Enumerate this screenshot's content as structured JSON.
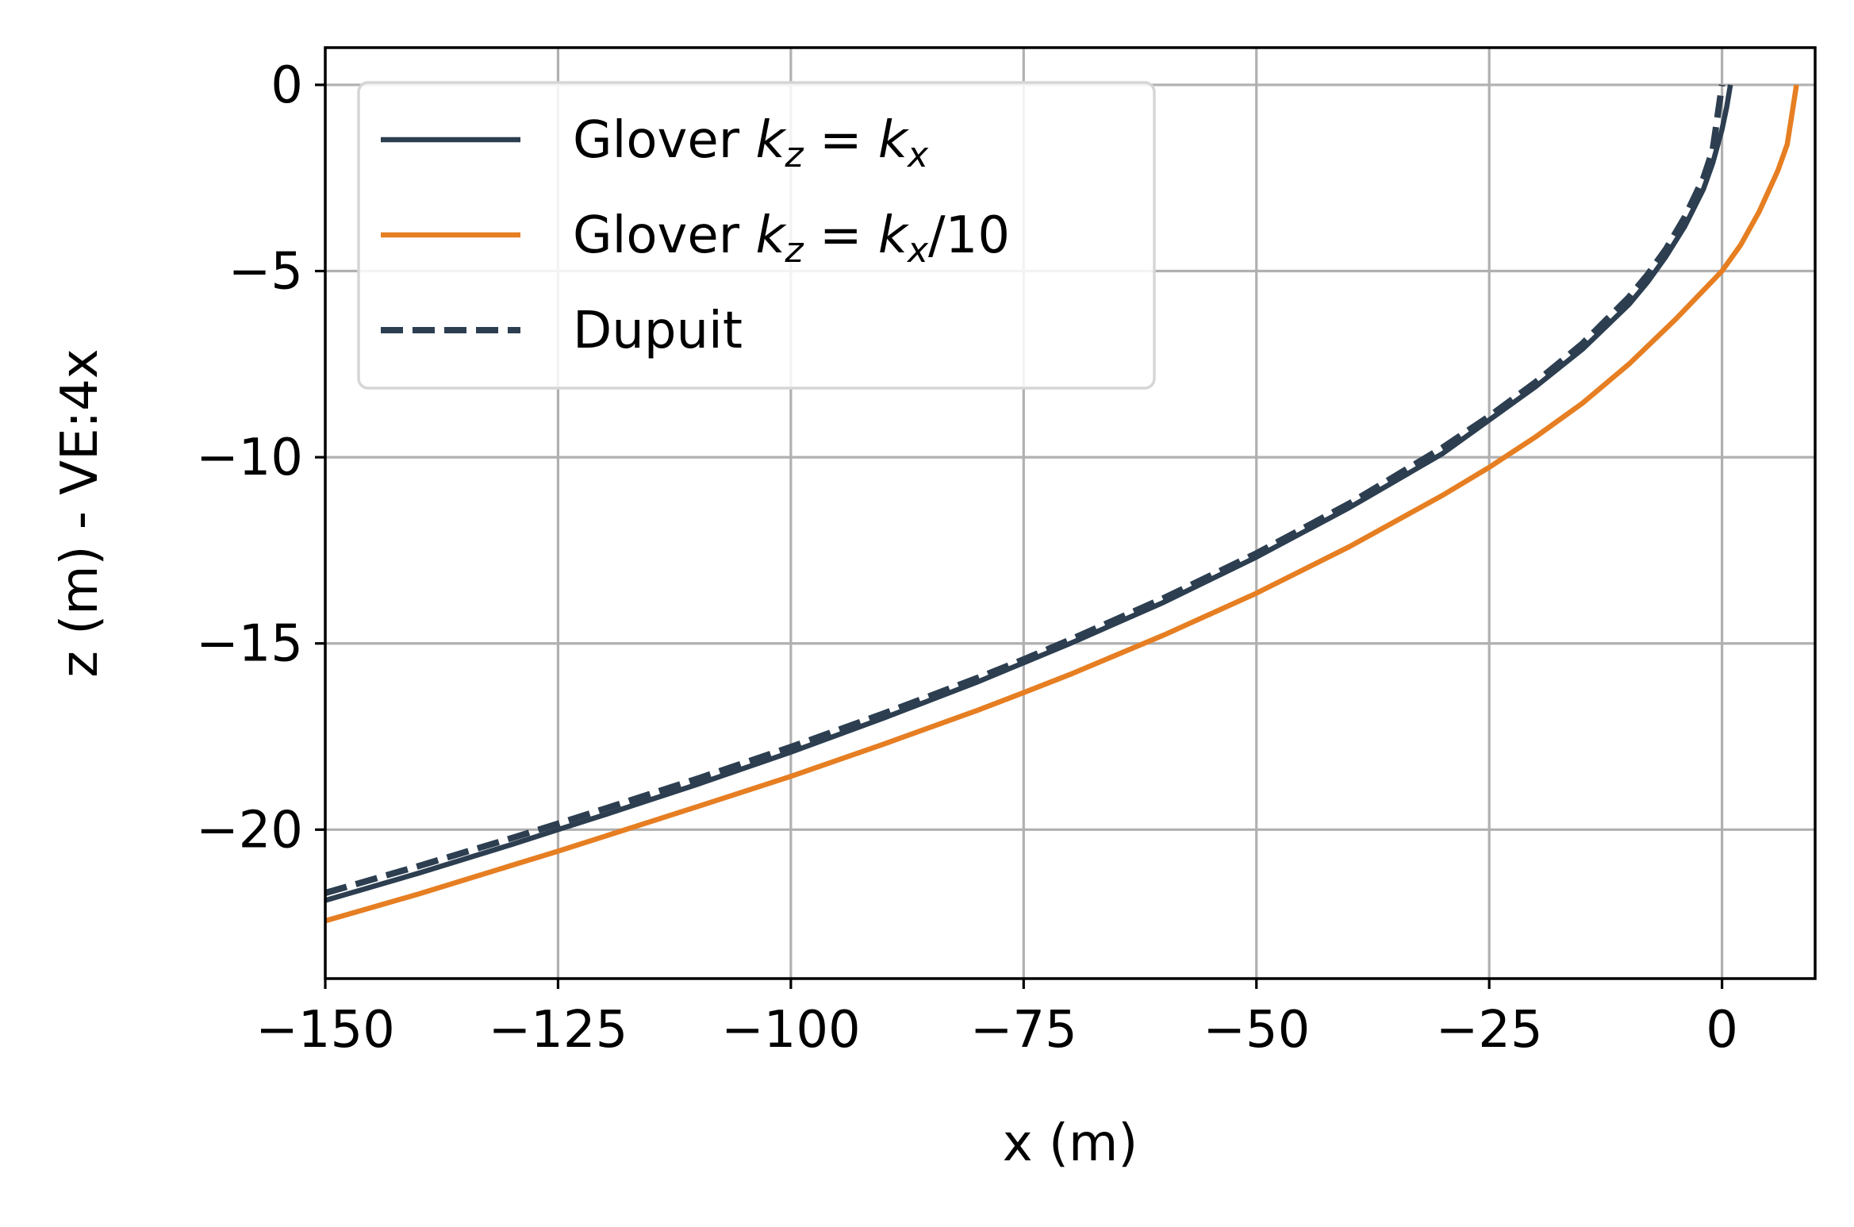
{
  "chart_data": {
    "type": "line",
    "xlabel": "x (m)",
    "ylabel": "z (m) - VE:4x",
    "xlim": [
      -150,
      10
    ],
    "ylim": [
      -24,
      1
    ],
    "grid": true,
    "legend_position": "upper-left",
    "x_ticks": [
      {
        "value": -150,
        "label": "−150"
      },
      {
        "value": -125,
        "label": "−125"
      },
      {
        "value": -100,
        "label": "−100"
      },
      {
        "value": -75,
        "label": "−75"
      },
      {
        "value": -50,
        "label": "−50"
      },
      {
        "value": -25,
        "label": "−25"
      },
      {
        "value": 0,
        "label": "0"
      }
    ],
    "y_ticks": [
      {
        "value": 0,
        "label": "0"
      },
      {
        "value": -5,
        "label": "−5"
      },
      {
        "value": -10,
        "label": "−10"
      },
      {
        "value": -15,
        "label": "−15"
      },
      {
        "value": -20,
        "label": "−20"
      }
    ],
    "series": [
      {
        "name": "Glover kz = kx",
        "legend": {
          "prefix": "Glover ",
          "k1": "k",
          "s1": "z",
          "eq": " = ",
          "k2": "k",
          "s2": "x",
          "suffix": ""
        },
        "color": "#2c3e50",
        "style": "solid",
        "points": [
          [
            -150,
            -21.9
          ],
          [
            -140,
            -21.17
          ],
          [
            -130,
            -20.4
          ],
          [
            -125,
            -20.0
          ],
          [
            -120,
            -19.6
          ],
          [
            -110,
            -18.78
          ],
          [
            -100,
            -17.92
          ],
          [
            -90,
            -17.0
          ],
          [
            -80,
            -16.04
          ],
          [
            -75,
            -15.52
          ],
          [
            -70,
            -15.0
          ],
          [
            -60,
            -13.9
          ],
          [
            -50,
            -12.68
          ],
          [
            -40,
            -11.35
          ],
          [
            -30,
            -9.9
          ],
          [
            -25,
            -9.0
          ],
          [
            -20,
            -8.1
          ],
          [
            -15,
            -7.1
          ],
          [
            -10,
            -5.9
          ],
          [
            -8,
            -5.3
          ],
          [
            -6,
            -4.6
          ],
          [
            -4,
            -3.8
          ],
          [
            -2,
            -2.8
          ],
          [
            -1,
            -2.1
          ],
          [
            0,
            -1.2
          ],
          [
            0.5,
            -0.6
          ],
          [
            0.9,
            0.0
          ]
        ]
      },
      {
        "name": "Glover kz = kx/10",
        "legend": {
          "prefix": "Glover ",
          "k1": "k",
          "s1": "z",
          "eq": " = ",
          "k2": "k",
          "s2": "x",
          "suffix": "/10"
        },
        "color": "#e67e22",
        "style": "solid",
        "points": [
          [
            -150,
            -22.45
          ],
          [
            -140,
            -21.73
          ],
          [
            -130,
            -20.96
          ],
          [
            -125,
            -20.58
          ],
          [
            -120,
            -20.18
          ],
          [
            -110,
            -19.38
          ],
          [
            -100,
            -18.57
          ],
          [
            -90,
            -17.7
          ],
          [
            -80,
            -16.8
          ],
          [
            -75,
            -16.32
          ],
          [
            -70,
            -15.83
          ],
          [
            -60,
            -14.78
          ],
          [
            -50,
            -13.65
          ],
          [
            -40,
            -12.4
          ],
          [
            -30,
            -11.02
          ],
          [
            -25,
            -10.27
          ],
          [
            -20,
            -9.45
          ],
          [
            -15,
            -8.55
          ],
          [
            -10,
            -7.5
          ],
          [
            -5,
            -6.3
          ],
          [
            0,
            -5.0
          ],
          [
            2,
            -4.3
          ],
          [
            4,
            -3.4
          ],
          [
            6,
            -2.3
          ],
          [
            7,
            -1.6
          ],
          [
            7.5,
            -0.8
          ],
          [
            8,
            0.0
          ]
        ]
      },
      {
        "name": "Dupuit",
        "legend": {
          "prefix": "Dupuit",
          "k1": "",
          "s1": "",
          "eq": "",
          "k2": "",
          "s2": "",
          "suffix": ""
        },
        "color": "#2c3e50",
        "style": "dashed",
        "points": [
          [
            -150,
            -21.7
          ],
          [
            -140,
            -20.98
          ],
          [
            -130,
            -20.23
          ],
          [
            -125,
            -19.84
          ],
          [
            -120,
            -19.44
          ],
          [
            -110,
            -18.63
          ],
          [
            -100,
            -17.78
          ],
          [
            -90,
            -16.88
          ],
          [
            -80,
            -15.93
          ],
          [
            -75,
            -15.43
          ],
          [
            -70,
            -14.9
          ],
          [
            -60,
            -13.79
          ],
          [
            -50,
            -12.58
          ],
          [
            -40,
            -11.24
          ],
          [
            -30,
            -9.74
          ],
          [
            -25,
            -8.9
          ],
          [
            -20,
            -7.98
          ],
          [
            -15,
            -6.95
          ],
          [
            -10,
            -5.7
          ],
          [
            -8,
            -5.1
          ],
          [
            -6,
            -4.4
          ],
          [
            -4,
            -3.55
          ],
          [
            -2,
            -2.5
          ],
          [
            -1,
            -1.75
          ],
          [
            0,
            0.0
          ]
        ]
      }
    ]
  }
}
